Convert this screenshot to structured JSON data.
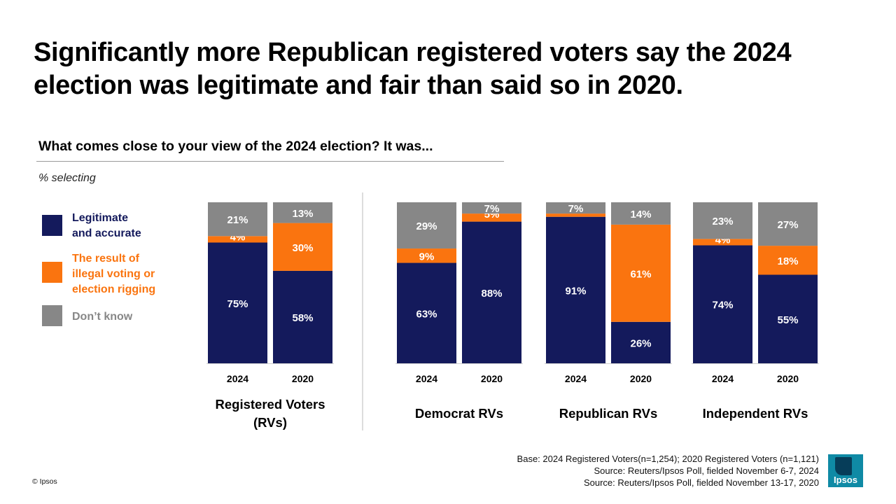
{
  "title": "Significantly more Republican registered voters say the 2024 election was legitimate and fair than said so in 2020.",
  "subtitle": "What comes close to your view of the 2024 election? It was...",
  "note": "% selecting",
  "colors": {
    "legitimate": "#141a5c",
    "illegal": "#fa740f",
    "dont_know": "#878787"
  },
  "legend": [
    {
      "key": "legitimate",
      "label": "Legitimate\n and accurate",
      "text_color": "#141a5c"
    },
    {
      "key": "illegal",
      "label": "The result of\nillegal voting or\nelection rigging",
      "text_color": "#fa740f"
    },
    {
      "key": "dont_know",
      "label": "Don’t know",
      "text_color": "#878787"
    }
  ],
  "chart_data": {
    "type": "bar",
    "stacked": true,
    "unit": "%",
    "series_order": [
      "legitimate",
      "illegal",
      "dont_know"
    ],
    "groups": [
      {
        "name": "Registered Voters\n(RVs)",
        "bars": [
          {
            "year": "2024",
            "legitimate": 75,
            "illegal": 4,
            "dont_know": 21
          },
          {
            "year": "2020",
            "legitimate": 58,
            "illegal": 30,
            "dont_know": 13
          }
        ]
      },
      {
        "name": "Democrat RVs",
        "bars": [
          {
            "year": "2024",
            "legitimate": 63,
            "illegal": 9,
            "dont_know": 29
          },
          {
            "year": "2020",
            "legitimate": 88,
            "illegal": 5,
            "dont_know": 7
          }
        ]
      },
      {
        "name": "Republican RVs",
        "bars": [
          {
            "year": "2024",
            "legitimate": 91,
            "illegal": 2,
            "dont_know": 7,
            "illegal_label": ""
          },
          {
            "year": "2020",
            "legitimate": 26,
            "illegal": 61,
            "dont_know": 14
          }
        ]
      },
      {
        "name": "Independent RVs",
        "bars": [
          {
            "year": "2024",
            "legitimate": 74,
            "illegal": 4,
            "dont_know": 23
          },
          {
            "year": "2020",
            "legitimate": 55,
            "illegal": 18,
            "dont_know": 27
          }
        ]
      }
    ]
  },
  "footnotes": [
    "Base: 2024 Registered Voters(n=1,254); 2020 Registered Voters (n=1,121)",
    "Source: Reuters/Ipsos Poll, fielded November 6-7, 2024",
    "Source: Reuters/Ipsos Poll, fielded November 13-17, 2020"
  ],
  "copyright": "© Ipsos",
  "logo_text": "Ipsos"
}
